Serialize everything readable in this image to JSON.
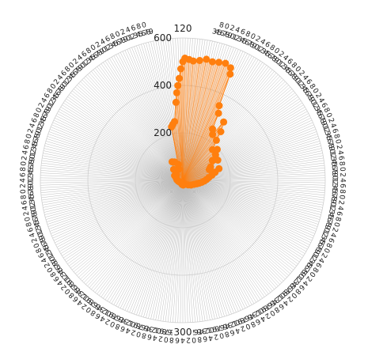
{
  "chart_data": {
    "type": "radar",
    "title": "",
    "axis_count": 360,
    "angle_start_label": "120",
    "angle_tick_labels": [
      {
        "label": "120",
        "angle_deg": 0
      },
      {
        "label": "300",
        "angle_deg": 180
      }
    ],
    "radial_ticks": [
      0,
      200,
      400,
      600
    ],
    "radial_range": [
      0,
      600
    ],
    "grid": true,
    "series": [
      {
        "color": "#ff7f0e",
        "fill": "#ff7f0e",
        "values": [
          {
            "angle_deg": 3,
            "r": 510
          },
          {
            "angle_deg": 5,
            "r": 505
          },
          {
            "angle_deg": 8,
            "r": 510
          },
          {
            "angle_deg": 11,
            "r": 520
          },
          {
            "angle_deg": 14,
            "r": 515
          },
          {
            "angle_deg": 17,
            "r": 520
          },
          {
            "angle_deg": 20,
            "r": 525
          },
          {
            "angle_deg": 23,
            "r": 515
          },
          {
            "angle_deg": 24,
            "r": 490
          },
          {
            "angle_deg": 26,
            "r": 350
          },
          {
            "angle_deg": 28,
            "r": 320
          },
          {
            "angle_deg": 30,
            "r": 250
          },
          {
            "angle_deg": 33,
            "r": 230
          },
          {
            "angle_deg": 35,
            "r": 300
          },
          {
            "angle_deg": 38,
            "r": 260
          },
          {
            "angle_deg": 40,
            "r": 220
          },
          {
            "angle_deg": 44,
            "r": 180
          },
          {
            "angle_deg": 48,
            "r": 195
          },
          {
            "angle_deg": 52,
            "r": 175
          },
          {
            "angle_deg": 56,
            "r": 150
          },
          {
            "angle_deg": 60,
            "r": 170
          },
          {
            "angle_deg": 64,
            "r": 130
          },
          {
            "angle_deg": 68,
            "r": 120
          },
          {
            "angle_deg": 72,
            "r": 160
          },
          {
            "angle_deg": 76,
            "r": 140
          },
          {
            "angle_deg": 80,
            "r": 125
          },
          {
            "angle_deg": 84,
            "r": 110
          },
          {
            "angle_deg": 88,
            "r": 100
          },
          {
            "angle_deg": 92,
            "r": 90
          },
          {
            "angle_deg": 96,
            "r": 80
          },
          {
            "angle_deg": 100,
            "r": 70
          },
          {
            "angle_deg": 104,
            "r": 60
          },
          {
            "angle_deg": 110,
            "r": 50
          },
          {
            "angle_deg": 120,
            "r": 40
          },
          {
            "angle_deg": 130,
            "r": 30
          },
          {
            "angle_deg": 145,
            "r": 20
          },
          {
            "angle_deg": 160,
            "r": 15
          },
          {
            "angle_deg": 175,
            "r": 20
          },
          {
            "angle_deg": 190,
            "r": 18
          },
          {
            "angle_deg": 205,
            "r": 12
          },
          {
            "angle_deg": 220,
            "r": 10
          },
          {
            "angle_deg": 240,
            "r": 15
          },
          {
            "angle_deg": 260,
            "r": 20
          },
          {
            "angle_deg": 275,
            "r": 25
          },
          {
            "angle_deg": 290,
            "r": 30
          },
          {
            "angle_deg": 300,
            "r": 40
          },
          {
            "angle_deg": 310,
            "r": 35
          },
          {
            "angle_deg": 320,
            "r": 60
          },
          {
            "angle_deg": 330,
            "r": 90
          },
          {
            "angle_deg": 336,
            "r": 85
          },
          {
            "angle_deg": 340,
            "r": 50
          },
          {
            "angle_deg": 344,
            "r": 70
          },
          {
            "angle_deg": 348,
            "r": 230
          },
          {
            "angle_deg": 350,
            "r": 240
          },
          {
            "angle_deg": 352,
            "r": 250
          },
          {
            "angle_deg": 355,
            "r": 330
          },
          {
            "angle_deg": 356,
            "r": 370
          },
          {
            "angle_deg": 357,
            "r": 400
          },
          {
            "angle_deg": 358,
            "r": 430
          },
          {
            "angle_deg": 359,
            "r": 470
          },
          {
            "angle_deg": 0,
            "r": 500
          },
          {
            "angle_deg": 1,
            "r": 515
          }
        ]
      }
    ]
  }
}
